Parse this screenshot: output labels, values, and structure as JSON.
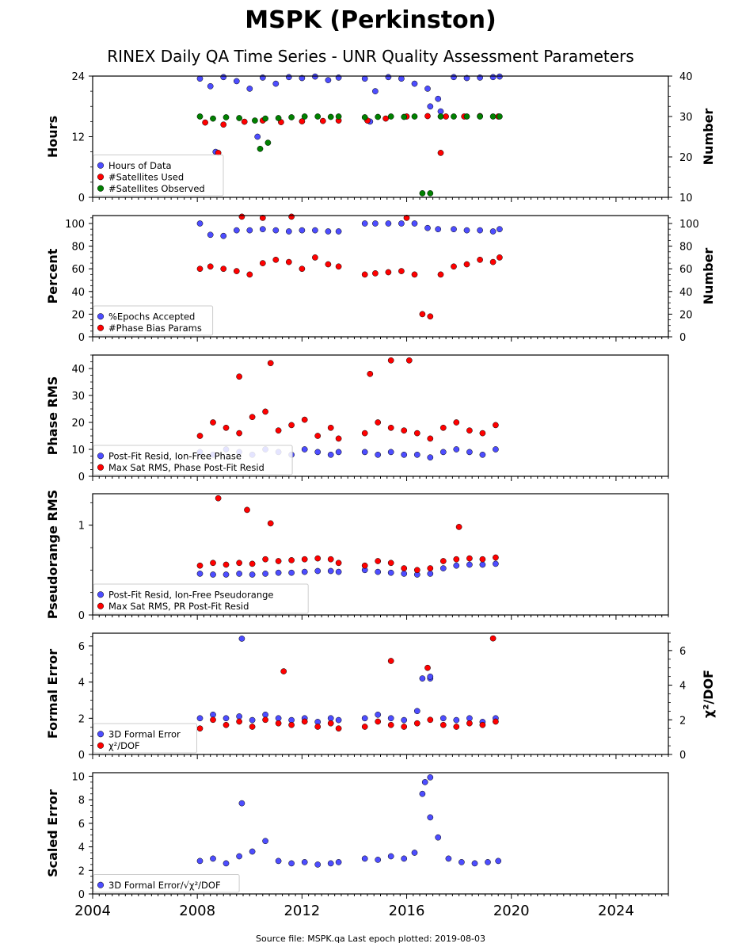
{
  "header": {
    "title": "MSPK (Perkinston)",
    "subtitle": "RINEX Daily QA Time Series - UNR Quality Assessment Parameters"
  },
  "footer": {
    "source": "Source file: MSPK.qa Last epoch plotted: 2019-08-03"
  },
  "colors": {
    "blue": "#4d4dff",
    "red": "#ff0000",
    "green": "#008000",
    "edge": "#000000"
  },
  "chart_data": [
    {
      "type": "scatter",
      "ylabel": "Hours",
      "ylabel_right": "Number",
      "xlim": [
        2004,
        2026
      ],
      "ylim": [
        0,
        24
      ],
      "yticks": [
        0,
        12,
        24
      ],
      "ylim_right": [
        10,
        40
      ],
      "yticks_right": [
        10,
        20,
        30,
        40
      ],
      "legend": "bottom-left",
      "series": [
        {
          "name": "Hours of Data",
          "color": "blue",
          "axis": "left",
          "x": [
            2008.1,
            2008.5,
            2009.0,
            2009.5,
            2010.0,
            2010.5,
            2011.0,
            2011.5,
            2012.0,
            2012.5,
            2013.0,
            2013.4,
            2014.4,
            2014.8,
            2015.3,
            2015.8,
            2016.3,
            2016.8,
            2017.2,
            2017.8,
            2018.3,
            2018.8,
            2019.3,
            2019.55,
            2008.7,
            2010.3,
            2014.6,
            2016.9,
            2017.3
          ],
          "y": [
            23.5,
            22.0,
            23.8,
            23.0,
            21.5,
            23.7,
            22.5,
            23.8,
            23.6,
            23.9,
            23.2,
            23.7,
            23.5,
            21.0,
            23.8,
            23.5,
            22.5,
            21.5,
            19.5,
            23.8,
            23.6,
            23.7,
            23.8,
            23.9,
            9.0,
            12.0,
            15.0,
            18.0,
            17.0
          ]
        },
        {
          "name": "#Satellites Used",
          "color": "red",
          "axis": "right",
          "x": [
            2008.3,
            2009.0,
            2009.8,
            2010.5,
            2011.2,
            2012.0,
            2012.8,
            2013.4,
            2014.5,
            2015.2,
            2016.0,
            2016.8,
            2017.5,
            2018.2,
            2018.8,
            2019.5,
            2008.8,
            2017.3
          ],
          "y": [
            28.5,
            28.0,
            28.7,
            29.0,
            28.6,
            28.8,
            28.9,
            29.0,
            29.0,
            29.5,
            30.0,
            30.1,
            30.0,
            30.0,
            30.1,
            30.0,
            21.0,
            21.0
          ]
        },
        {
          "name": "#Satellites Observed",
          "color": "green",
          "axis": "right",
          "x": [
            2008.1,
            2008.6,
            2009.1,
            2009.6,
            2010.2,
            2010.6,
            2011.1,
            2011.6,
            2012.1,
            2012.6,
            2013.1,
            2013.4,
            2014.4,
            2014.9,
            2015.4,
            2015.9,
            2016.3,
            2016.6,
            2016.9,
            2017.3,
            2017.8,
            2018.3,
            2018.8,
            2019.3,
            2019.55,
            2010.4,
            2010.7
          ],
          "y": [
            30.0,
            29.5,
            29.8,
            29.6,
            29.0,
            29.5,
            29.6,
            29.8,
            30.0,
            30.0,
            29.9,
            30.0,
            29.8,
            29.9,
            30.0,
            29.9,
            30.0,
            11.0,
            11.0,
            30.0,
            30.0,
            30.0,
            30.0,
            30.0,
            30.0,
            22.0,
            23.5
          ]
        }
      ]
    },
    {
      "type": "scatter",
      "ylabel": "Percent",
      "ylabel_right": "Number",
      "xlim": [
        2004,
        2026
      ],
      "ylim": [
        0,
        107
      ],
      "yticks": [
        0,
        20,
        40,
        60,
        80,
        100
      ],
      "ylim_right": [
        0,
        107
      ],
      "yticks_right": [
        0,
        20,
        40,
        60,
        80,
        100
      ],
      "legend": "bottom-left",
      "series": [
        {
          "name": "%Epochs Accepted",
          "color": "blue",
          "axis": "left",
          "x": [
            2008.1,
            2008.5,
            2009.0,
            2009.5,
            2010.0,
            2010.5,
            2011.0,
            2011.5,
            2012.0,
            2012.5,
            2013.0,
            2013.4,
            2014.4,
            2014.8,
            2015.3,
            2015.8,
            2016.3,
            2016.8,
            2017.2,
            2017.8,
            2018.3,
            2018.8,
            2019.3,
            2019.55
          ],
          "y": [
            100,
            90,
            89,
            94,
            94,
            95,
            94,
            93,
            94,
            94,
            93,
            93,
            100,
            100,
            100,
            100,
            100,
            96,
            95,
            95,
            94,
            94,
            93,
            95
          ]
        },
        {
          "name": "#Phase Bias Params",
          "color": "red",
          "axis": "right",
          "x": [
            2008.1,
            2008.5,
            2009.0,
            2009.5,
            2010.0,
            2010.5,
            2011.0,
            2011.5,
            2012.0,
            2012.5,
            2013.0,
            2013.4,
            2014.4,
            2014.8,
            2015.3,
            2015.8,
            2016.3,
            2016.6,
            2016.9,
            2017.3,
            2017.8,
            2018.3,
            2018.8,
            2019.3,
            2019.55,
            2009.7,
            2010.5,
            2011.6,
            2016.0
          ],
          "y": [
            60,
            62,
            60,
            58,
            55,
            65,
            68,
            66,
            60,
            70,
            64,
            62,
            55,
            56,
            57,
            58,
            55,
            20,
            18,
            55,
            62,
            64,
            68,
            66,
            70,
            106,
            105,
            106,
            105
          ]
        }
      ]
    },
    {
      "type": "scatter",
      "ylabel": "Phase RMS",
      "xlim": [
        2004,
        2026
      ],
      "ylim": [
        0,
        45
      ],
      "yticks": [
        0,
        10,
        20,
        30,
        40
      ],
      "legend": "bottom-left",
      "series": [
        {
          "name": "Post-Fit Resid, Ion-Free Phase",
          "color": "blue",
          "x": [
            2008.1,
            2008.6,
            2009.1,
            2009.6,
            2010.1,
            2010.6,
            2011.1,
            2011.6,
            2012.1,
            2012.6,
            2013.1,
            2013.4,
            2014.4,
            2014.9,
            2015.4,
            2015.9,
            2016.4,
            2016.9,
            2017.4,
            2017.9,
            2018.4,
            2018.9,
            2019.4
          ],
          "y": [
            9,
            8,
            10,
            9,
            8,
            10,
            9,
            8,
            10,
            9,
            8,
            9,
            9,
            8,
            9,
            8,
            8,
            7,
            9,
            10,
            9,
            8,
            10
          ]
        },
        {
          "name": "Max Sat RMS, Phase Post-Fit Resid",
          "color": "red",
          "x": [
            2008.1,
            2008.6,
            2009.1,
            2009.6,
            2010.1,
            2010.6,
            2011.1,
            2011.6,
            2012.1,
            2012.6,
            2013.1,
            2013.4,
            2014.4,
            2014.9,
            2015.4,
            2015.9,
            2016.4,
            2016.9,
            2017.4,
            2017.9,
            2018.4,
            2018.9,
            2019.4,
            2009.6,
            2010.8,
            2015.4,
            2016.1,
            2014.6
          ],
          "y": [
            15,
            20,
            18,
            16,
            22,
            24,
            17,
            19,
            21,
            15,
            18,
            14,
            16,
            20,
            18,
            17,
            16,
            14,
            18,
            20,
            17,
            16,
            19,
            37,
            42,
            43,
            43,
            38
          ]
        }
      ]
    },
    {
      "type": "scatter",
      "ylabel": "Pseudorange RMS",
      "xlim": [
        2004,
        2026
      ],
      "ylim": [
        0,
        1.35
      ],
      "yticks": [
        0,
        1
      ],
      "legend": "bottom-left",
      "series": [
        {
          "name": "Post-Fit Resid, Ion-Free Pseudorange",
          "color": "blue",
          "x": [
            2008.1,
            2008.6,
            2009.1,
            2009.6,
            2010.1,
            2010.6,
            2011.1,
            2011.6,
            2012.1,
            2012.6,
            2013.1,
            2013.4,
            2014.4,
            2014.9,
            2015.4,
            2015.9,
            2016.4,
            2016.9,
            2017.4,
            2017.9,
            2018.4,
            2018.9,
            2019.4
          ],
          "y": [
            0.46,
            0.45,
            0.45,
            0.46,
            0.45,
            0.46,
            0.47,
            0.47,
            0.48,
            0.49,
            0.49,
            0.48,
            0.5,
            0.48,
            0.47,
            0.46,
            0.45,
            0.46,
            0.52,
            0.55,
            0.56,
            0.56,
            0.57
          ]
        },
        {
          "name": "Max Sat RMS, PR Post-Fit Resid",
          "color": "red",
          "x": [
            2008.1,
            2008.6,
            2009.1,
            2009.6,
            2010.1,
            2010.6,
            2011.1,
            2011.6,
            2012.1,
            2012.6,
            2013.1,
            2013.4,
            2014.4,
            2014.9,
            2015.4,
            2015.9,
            2016.4,
            2016.9,
            2017.4,
            2017.9,
            2018.4,
            2018.9,
            2019.4,
            2008.8,
            2009.9,
            2018.0,
            2010.8
          ],
          "y": [
            0.55,
            0.58,
            0.56,
            0.58,
            0.57,
            0.62,
            0.6,
            0.61,
            0.62,
            0.63,
            0.62,
            0.58,
            0.55,
            0.6,
            0.58,
            0.52,
            0.5,
            0.52,
            0.6,
            0.62,
            0.63,
            0.62,
            0.64,
            1.3,
            1.17,
            0.98,
            1.02
          ]
        }
      ]
    },
    {
      "type": "scatter",
      "ylabel": "Formal Error",
      "ylabel_right": "χ²/DOF",
      "xlim": [
        2004,
        2026
      ],
      "ylim": [
        0,
        6.7
      ],
      "yticks": [
        0,
        2,
        4,
        6
      ],
      "ylim_right": [
        0,
        7
      ],
      "yticks_right": [
        0,
        2,
        4,
        6
      ],
      "legend": "bottom-left",
      "series": [
        {
          "name": "3D Formal Error",
          "color": "blue",
          "axis": "left",
          "x": [
            2008.1,
            2008.6,
            2009.1,
            2009.6,
            2010.1,
            2010.6,
            2011.1,
            2011.6,
            2012.1,
            2012.6,
            2013.1,
            2013.4,
            2014.4,
            2014.9,
            2015.4,
            2015.9,
            2016.4,
            2016.9,
            2017.4,
            2017.9,
            2018.4,
            2018.9,
            2019.4,
            2009.7,
            2016.6,
            2016.9
          ],
          "y": [
            2.0,
            2.2,
            2.0,
            2.1,
            1.9,
            2.2,
            2.0,
            1.9,
            2.0,
            1.8,
            2.0,
            1.9,
            2.0,
            2.2,
            2.0,
            1.9,
            2.4,
            4.2,
            2.0,
            1.9,
            2.0,
            1.8,
            2.0,
            6.4,
            4.2,
            4.3
          ]
        },
        {
          "name": "χ²/DOF",
          "color": "red",
          "axis": "right",
          "x": [
            2008.1,
            2008.6,
            2009.1,
            2009.6,
            2010.1,
            2010.6,
            2011.1,
            2011.6,
            2012.1,
            2012.6,
            2013.1,
            2013.4,
            2014.4,
            2014.9,
            2015.4,
            2015.9,
            2016.4,
            2016.9,
            2017.4,
            2017.9,
            2018.4,
            2018.9,
            2019.4,
            2011.3,
            2015.4,
            2016.8,
            2019.3
          ],
          "y": [
            1.5,
            2.0,
            1.7,
            1.9,
            1.6,
            2.0,
            1.8,
            1.7,
            1.9,
            1.6,
            1.8,
            1.5,
            1.6,
            1.9,
            1.7,
            1.6,
            1.8,
            2.0,
            1.7,
            1.6,
            1.8,
            1.7,
            1.9,
            4.8,
            5.4,
            5.0,
            6.7
          ]
        }
      ]
    },
    {
      "type": "scatter",
      "ylabel": "Scaled Error",
      "xlim": [
        2004,
        2026
      ],
      "xticks": [
        2004,
        2008,
        2012,
        2016,
        2020,
        2024
      ],
      "ylim": [
        0,
        10.3
      ],
      "yticks": [
        0,
        2,
        4,
        6,
        8,
        10
      ],
      "legend": "bottom-left",
      "series": [
        {
          "name": "3D Formal Error/√χ²/DOF",
          "color": "blue",
          "x": [
            2008.1,
            2008.6,
            2009.1,
            2009.6,
            2010.1,
            2010.6,
            2011.1,
            2011.6,
            2012.1,
            2012.6,
            2013.1,
            2013.4,
            2014.4,
            2014.9,
            2015.4,
            2015.9,
            2016.3,
            2016.6,
            2016.9,
            2017.2,
            2017.6,
            2018.1,
            2018.6,
            2019.1,
            2019.5,
            2009.7,
            2016.9,
            2016.7
          ],
          "y": [
            2.8,
            3.0,
            2.6,
            3.2,
            3.6,
            4.5,
            2.8,
            2.6,
            2.7,
            2.5,
            2.6,
            2.7,
            3.0,
            2.9,
            3.2,
            3.0,
            3.5,
            8.5,
            6.5,
            4.8,
            3.0,
            2.7,
            2.6,
            2.7,
            2.8,
            7.7,
            9.9,
            9.5
          ]
        }
      ]
    }
  ]
}
